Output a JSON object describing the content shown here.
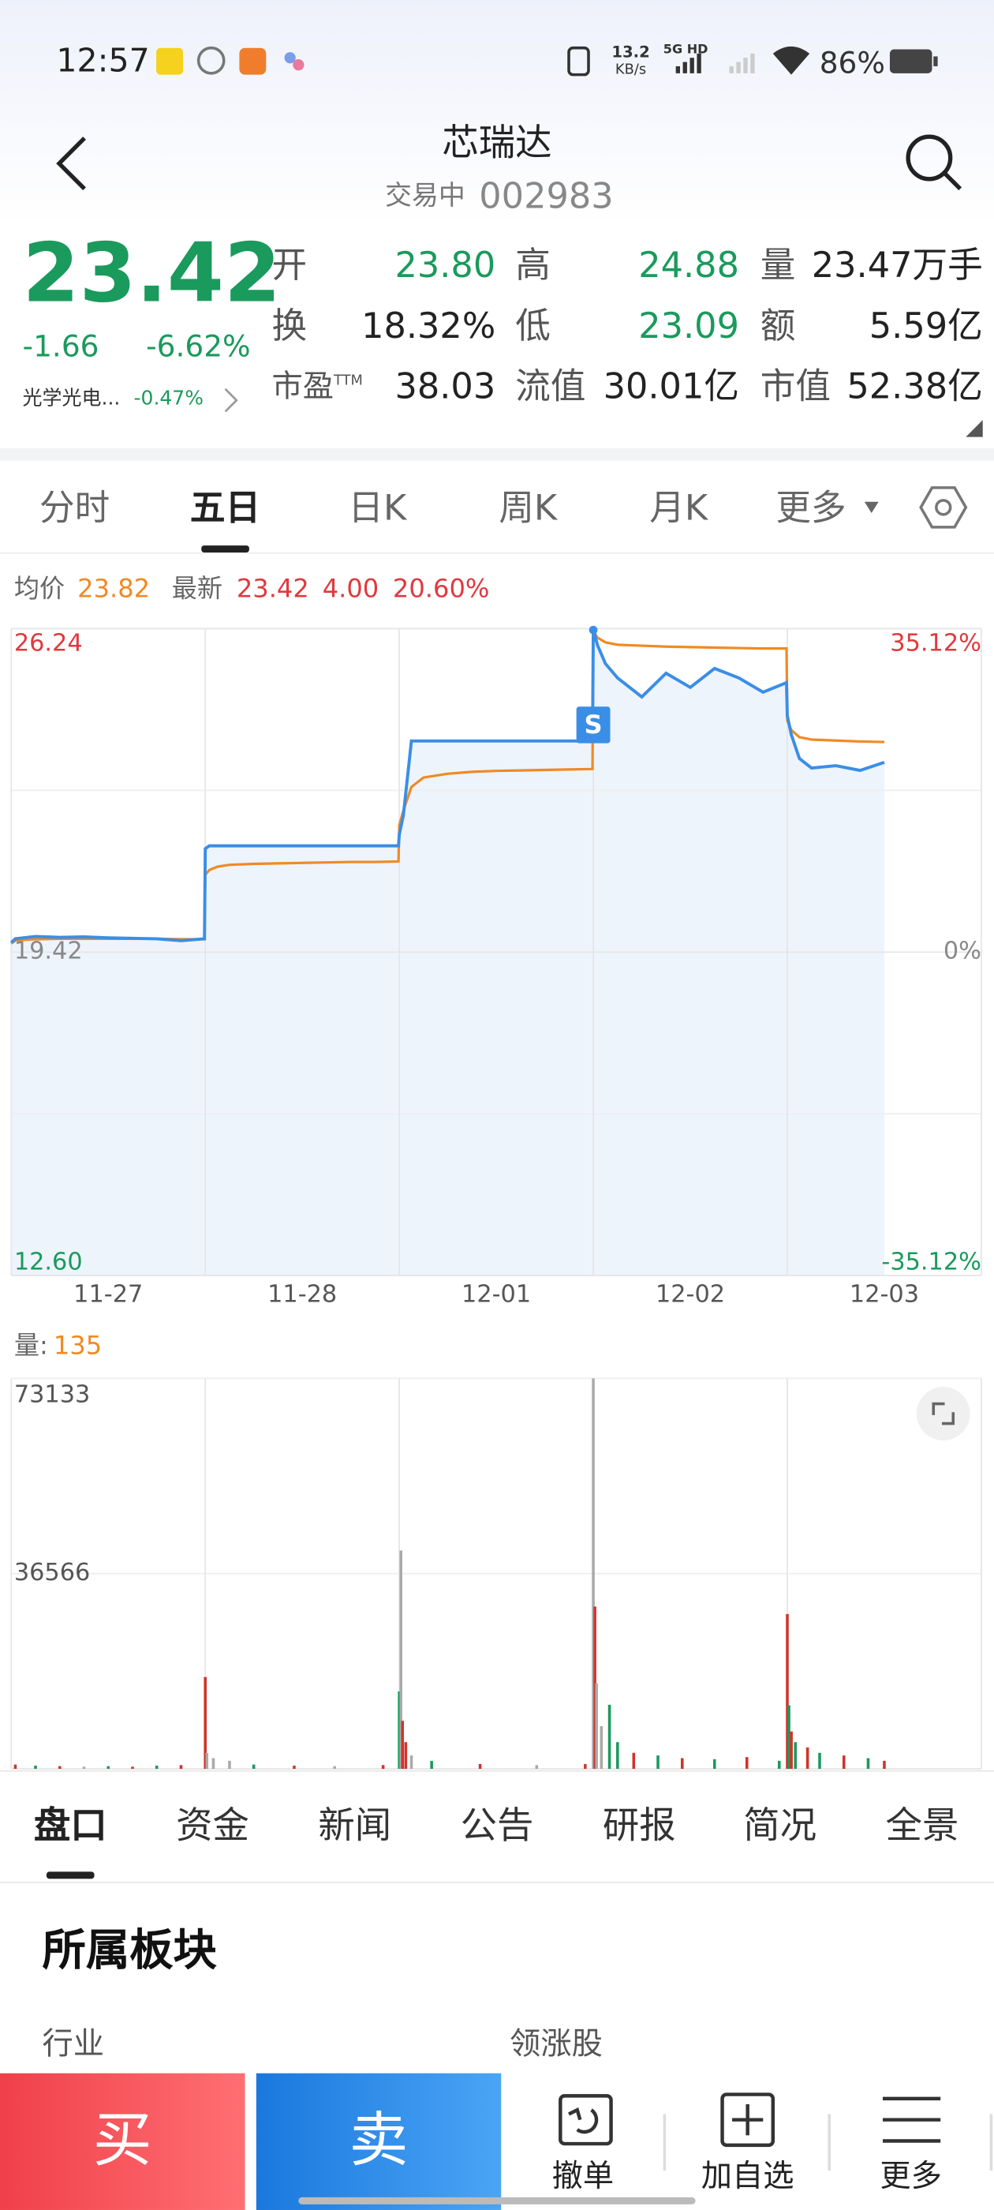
{
  "status_bar": {
    "time": "12:57",
    "speed": "13.2",
    "speed_unit": "KB/s",
    "network": "5G HD",
    "battery": "86%"
  },
  "header": {
    "title": "芯瑞达",
    "status": "交易中",
    "code": "002983"
  },
  "quote": {
    "price": "23.42",
    "change": "-1.66",
    "change_pct": "-6.62%",
    "sector": "光学光电...",
    "sector_change": "-0.47%",
    "stats": [
      [
        {
          "label": "开",
          "value": "23.80",
          "color": "#1a9a5c"
        },
        {
          "label": "高",
          "value": "24.88",
          "color": "#1a9a5c"
        },
        {
          "label": "量",
          "value": "23.47万手",
          "color": "#222222"
        }
      ],
      [
        {
          "label": "换",
          "value": "18.32%",
          "color": "#222222"
        },
        {
          "label": "低",
          "value": "23.09",
          "color": "#1a9a5c"
        },
        {
          "label": "额",
          "value": "5.59亿",
          "color": "#222222"
        }
      ],
      [
        {
          "label": "市盈",
          "sup": "TTM",
          "value": "38.03",
          "color": "#222222"
        },
        {
          "label": "流值",
          "value": "30.01亿",
          "color": "#222222"
        },
        {
          "label": "市值",
          "value": "52.38亿",
          "color": "#222222"
        }
      ]
    ]
  },
  "period_tabs": {
    "items": [
      "分时",
      "五日",
      "日K",
      "周K",
      "月K",
      "更多"
    ],
    "active": 1
  },
  "chart_data": [
    {
      "type": "line",
      "legend": {
        "avg": "23.82",
        "latest": [
          "23.42",
          "4.00",
          "20.60%"
        ]
      },
      "x": [
        0,
        5,
        15,
        30,
        60,
        90,
        120,
        150,
        180,
        210,
        239,
        240,
        245,
        255,
        270,
        300,
        330,
        360,
        390,
        420,
        450,
        479,
        480,
        485,
        495,
        510,
        540,
        570,
        600,
        630,
        660,
        690,
        719,
        720,
        725,
        735,
        750,
        780,
        810,
        840,
        870,
        900,
        930,
        959,
        960,
        965,
        975,
        990,
        1020,
        1050,
        1080
      ],
      "series": [
        {
          "name": "均价",
          "color": "#f08a24",
          "values": [
            19.6,
            19.66,
            19.68,
            19.69,
            19.7,
            19.7,
            19.7,
            19.7,
            19.7,
            19.69,
            19.69,
            21.05,
            21.15,
            21.22,
            21.26,
            21.28,
            21.29,
            21.3,
            21.31,
            21.32,
            21.32,
            21.33,
            22.1,
            22.4,
            22.9,
            23.1,
            23.18,
            23.22,
            23.24,
            23.25,
            23.26,
            23.27,
            23.28,
            26.2,
            26.05,
            25.95,
            25.9,
            25.88,
            25.86,
            25.85,
            25.84,
            25.83,
            25.82,
            25.82,
            24.3,
            24.1,
            23.95,
            23.9,
            23.88,
            23.86,
            23.85
          ]
        },
        {
          "name": "最新",
          "color": "#3a8ee6",
          "values": [
            19.62,
            19.7,
            19.72,
            19.75,
            19.73,
            19.74,
            19.72,
            19.71,
            19.7,
            19.66,
            19.7,
            21.6,
            21.66,
            21.66,
            21.66,
            21.66,
            21.66,
            21.66,
            21.66,
            21.66,
            21.66,
            21.66,
            21.9,
            22.3,
            23.87,
            23.87,
            23.87,
            23.87,
            23.87,
            23.87,
            23.87,
            23.87,
            23.87,
            26.24,
            25.9,
            25.5,
            25.2,
            24.8,
            25.3,
            25.0,
            25.4,
            25.2,
            24.9,
            25.1,
            24.4,
            24.0,
            23.5,
            23.3,
            23.35,
            23.25,
            23.42
          ]
        }
      ],
      "annotations": [
        {
          "text": "S",
          "x": 720,
          "y": 24.21
        }
      ],
      "xlim": [
        0,
        1200
      ],
      "xticks": [
        {
          "value": 120,
          "label": "11-27"
        },
        {
          "value": 360,
          "label": "11-28"
        },
        {
          "value": 600,
          "label": "12-01"
        },
        {
          "value": 840,
          "label": "12-02"
        },
        {
          "value": 1080,
          "label": "12-03"
        }
      ],
      "ylim": [
        12.6,
        26.24
      ],
      "yticks": [
        {
          "value": 12.6,
          "label": "12.60"
        },
        19.42,
        26.24
      ],
      "y2lim": [
        -35.12,
        35.12
      ],
      "y2ticks": [
        {
          "value": -35.12,
          "label": "-35.12%"
        },
        {
          "value": 0,
          "label": "0%"
        },
        {
          "value": 35.12,
          "label": "35.12%"
        }
      ],
      "grid": true
    },
    {
      "type": "bar",
      "label": "量:",
      "latest": "135",
      "x": [
        5,
        30,
        60,
        90,
        120,
        150,
        180,
        210,
        240,
        242,
        250,
        270,
        300,
        350,
        400,
        460,
        480,
        482,
        484,
        488,
        495,
        520,
        580,
        650,
        710,
        720,
        722,
        724,
        730,
        740,
        750,
        770,
        800,
        830,
        870,
        910,
        950,
        960,
        962,
        965,
        970,
        985,
        1000,
        1030,
        1060,
        1080
      ],
      "values": [
        800,
        600,
        500,
        400,
        500,
        400,
        600,
        700,
        17200,
        3000,
        2000,
        1500,
        800,
        600,
        500,
        700,
        14500,
        40900,
        9000,
        5000,
        2500,
        1500,
        900,
        700,
        900,
        73133,
        30400,
        16000,
        8000,
        12000,
        5000,
        3000,
        2500,
        2000,
        1800,
        2200,
        1500,
        29000,
        11900,
        7000,
        5000,
        4000,
        3000,
        2500,
        2000,
        1500
      ],
      "colors": [
        "#d0342c",
        "#1a9a5c",
        "#d0342c",
        "#aaaaaa",
        "#1a9a5c",
        "#d0342c",
        "#1a9a5c",
        "#d0342c",
        "#d0342c",
        "#aaaaaa",
        "#aaaaaa",
        "#aaaaaa",
        "#1a9a5c",
        "#d0342c",
        "#aaaaaa",
        "#d0342c",
        "#1a9a5c",
        "#aaaaaa",
        "#d0342c",
        "#d0342c",
        "#aaaaaa",
        "#1a9a5c",
        "#d0342c",
        "#aaaaaa",
        "#d0342c",
        "#aaaaaa",
        "#d0342c",
        "#aaaaaa",
        "#aaaaaa",
        "#1a9a5c",
        "#1a9a5c",
        "#d0342c",
        "#1a9a5c",
        "#d0342c",
        "#1a9a5c",
        "#d0342c",
        "#1a9a5c",
        "#d0342c",
        "#1a9a5c",
        "#d0342c",
        "#1a9a5c",
        "#d0342c",
        "#1a9a5c",
        "#d0342c",
        "#1a9a5c",
        "#d0342c"
      ],
      "xlim": [
        0,
        1200
      ],
      "ylim": [
        0,
        73133
      ],
      "yticks": [
        36566,
        73133
      ],
      "grid": true
    }
  ],
  "detail_tabs": {
    "items": [
      "盘口",
      "资金",
      "新闻",
      "公告",
      "研报",
      "简况",
      "全景"
    ],
    "active": 0
  },
  "section": {
    "title": "所属板块",
    "left": "行业",
    "right": "领涨股"
  },
  "actions": {
    "buy": "买",
    "sell": "卖",
    "items": [
      "撤单",
      "加自选",
      "更多"
    ]
  }
}
